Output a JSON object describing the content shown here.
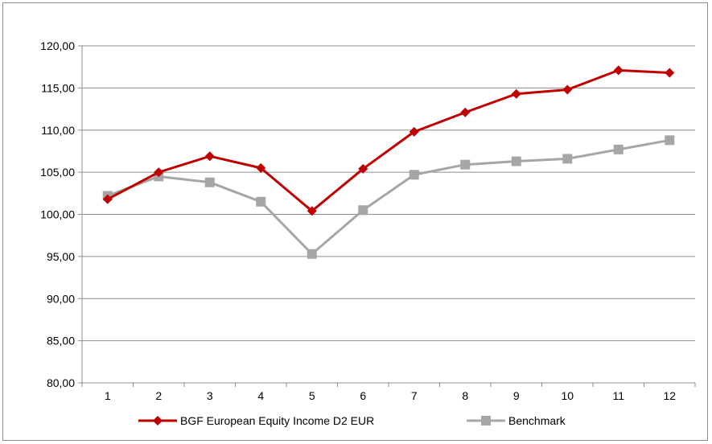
{
  "chart_data": {
    "type": "line",
    "title": "",
    "xlabel": "",
    "ylabel": "",
    "x": [
      "1",
      "2",
      "3",
      "4",
      "5",
      "6",
      "7",
      "8",
      "9",
      "10",
      "11",
      "12"
    ],
    "ylim": [
      80,
      120
    ],
    "yticks": [
      80,
      85,
      90,
      95,
      100,
      105,
      110,
      115,
      120
    ],
    "ytick_labels": [
      "80,00",
      "85,00",
      "90,00",
      "95,00",
      "100,00",
      "105,00",
      "110,00",
      "115,00",
      "120,00"
    ],
    "grid": true,
    "legend_position": "bottom",
    "series": [
      {
        "name": "BGF European Equity Income D2 EUR",
        "color": "#c00000",
        "marker": "diamond",
        "values": [
          101.8,
          105.0,
          106.9,
          105.5,
          100.4,
          105.4,
          109.8,
          112.1,
          114.3,
          114.8,
          117.1,
          116.8
        ]
      },
      {
        "name": "Benchmark",
        "color": "#a6a6a6",
        "marker": "square",
        "values": [
          102.2,
          104.5,
          103.8,
          101.5,
          95.3,
          100.5,
          104.7,
          105.9,
          106.3,
          106.6,
          107.7,
          108.8
        ]
      }
    ]
  }
}
